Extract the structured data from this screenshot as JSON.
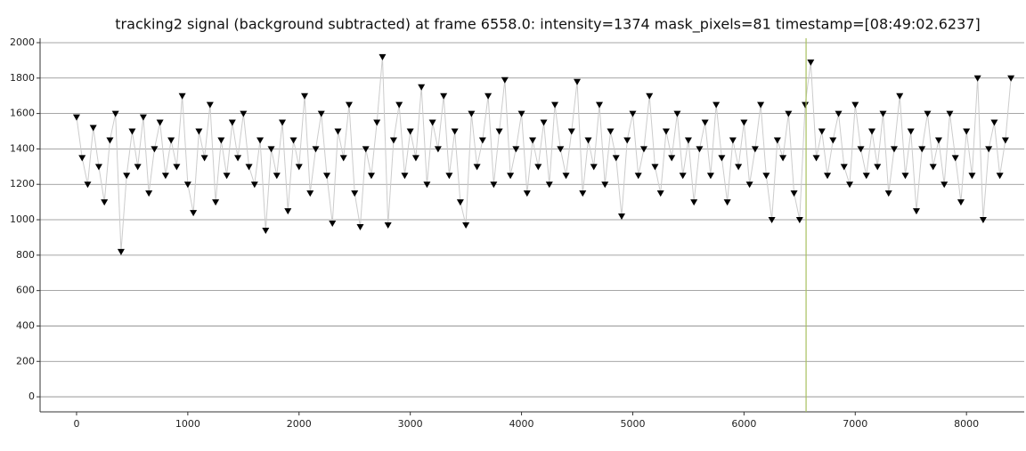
{
  "chart_data": {
    "type": "line",
    "title": "tracking2 signal (background subtracted) at frame 6558.0: intensity=1374 mask_pixels=81 timestamp=[08:49:02.6237]",
    "x": [
      0,
      50,
      100,
      150,
      200,
      250,
      300,
      350,
      400,
      450,
      500,
      550,
      600,
      650,
      700,
      750,
      800,
      850,
      900,
      950,
      1000,
      1050,
      1100,
      1150,
      1200,
      1250,
      1300,
      1350,
      1400,
      1450,
      1500,
      1550,
      1600,
      1650,
      1700,
      1750,
      1800,
      1850,
      1900,
      1950,
      2000,
      2050,
      2100,
      2150,
      2200,
      2250,
      2300,
      2350,
      2400,
      2450,
      2500,
      2550,
      2600,
      2650,
      2700,
      2750,
      2800,
      2850,
      2900,
      2950,
      3000,
      3050,
      3100,
      3150,
      3200,
      3250,
      3300,
      3350,
      3400,
      3450,
      3500,
      3550,
      3600,
      3650,
      3700,
      3750,
      3800,
      3850,
      3900,
      3950,
      4000,
      4050,
      4100,
      4150,
      4200,
      4250,
      4300,
      4350,
      4400,
      4450,
      4500,
      4550,
      4600,
      4650,
      4700,
      4750,
      4800,
      4850,
      4900,
      4950,
      5000,
      5050,
      5100,
      5150,
      5200,
      5250,
      5300,
      5350,
      5400,
      5450,
      5500,
      5550,
      5600,
      5650,
      5700,
      5750,
      5800,
      5850,
      5900,
      5950,
      6000,
      6050,
      6100,
      6150,
      6200,
      6250,
      6300,
      6350,
      6400,
      6450,
      6500,
      6550,
      6600,
      6650,
      6700,
      6750,
      6800,
      6850,
      6900,
      6950,
      7000,
      7050,
      7100,
      7150,
      7200,
      7250,
      7300,
      7350,
      7400,
      7450,
      7500,
      7550,
      7600,
      7650,
      7700,
      7750,
      7800,
      7850,
      7900,
      7950,
      8000,
      8050,
      8100,
      8150,
      8200,
      8250,
      8300,
      8350,
      8400
    ],
    "values": [
      1580,
      1350,
      1200,
      1520,
      1300,
      1100,
      1450,
      1600,
      820,
      1250,
      1500,
      1300,
      1580,
      1150,
      1400,
      1550,
      1250,
      1450,
      1300,
      1700,
      1200,
      1040,
      1500,
      1350,
      1650,
      1100,
      1450,
      1250,
      1550,
      1350,
      1600,
      1300,
      1200,
      1450,
      940,
      1400,
      1250,
      1550,
      1050,
      1450,
      1300,
      1700,
      1150,
      1400,
      1600,
      1250,
      980,
      1500,
      1350,
      1650,
      1150,
      960,
      1400,
      1250,
      1550,
      1920,
      970,
      1450,
      1650,
      1250,
      1500,
      1350,
      1750,
      1200,
      1550,
      1400,
      1700,
      1250,
      1500,
      1100,
      970,
      1600,
      1300,
      1450,
      1700,
      1200,
      1500,
      1790,
      1250,
      1400,
      1600,
      1150,
      1450,
      1300,
      1550,
      1200,
      1650,
      1400,
      1250,
      1500,
      1780,
      1150,
      1450,
      1300,
      1650,
      1200,
      1500,
      1350,
      1020,
      1450,
      1600,
      1250,
      1400,
      1700,
      1300,
      1150,
      1500,
      1350,
      1600,
      1250,
      1450,
      1100,
      1400,
      1550,
      1250,
      1650,
      1350,
      1100,
      1450,
      1300,
      1550,
      1200,
      1400,
      1650,
      1250,
      1000,
      1450,
      1350,
      1600,
      1150,
      1000,
      1650,
      1890,
      1350,
      1500,
      1250,
      1450,
      1600,
      1300,
      1200,
      1650,
      1400,
      1250,
      1500,
      1300,
      1600,
      1150,
      1400,
      1700,
      1250,
      1500,
      1050,
      1400,
      1600,
      1300,
      1450,
      1200,
      1600,
      1350,
      1100,
      1500,
      1250,
      1800,
      1000,
      1400,
      1550,
      1250,
      1450,
      1800
    ],
    "color": "#000000",
    "line_color": "#cccccc",
    "cursor_x": 6558,
    "cursor_color": "#a8c060",
    "xlim": [
      -328,
      8519
    ],
    "ylim": [
      -85,
      2025
    ],
    "xticks": [
      0,
      1000,
      2000,
      3000,
      4000,
      5000,
      6000,
      7000,
      8000
    ],
    "yticks": [
      0,
      200,
      400,
      600,
      800,
      1000,
      1200,
      1400,
      1600,
      1800,
      2000
    ],
    "grid": true
  }
}
